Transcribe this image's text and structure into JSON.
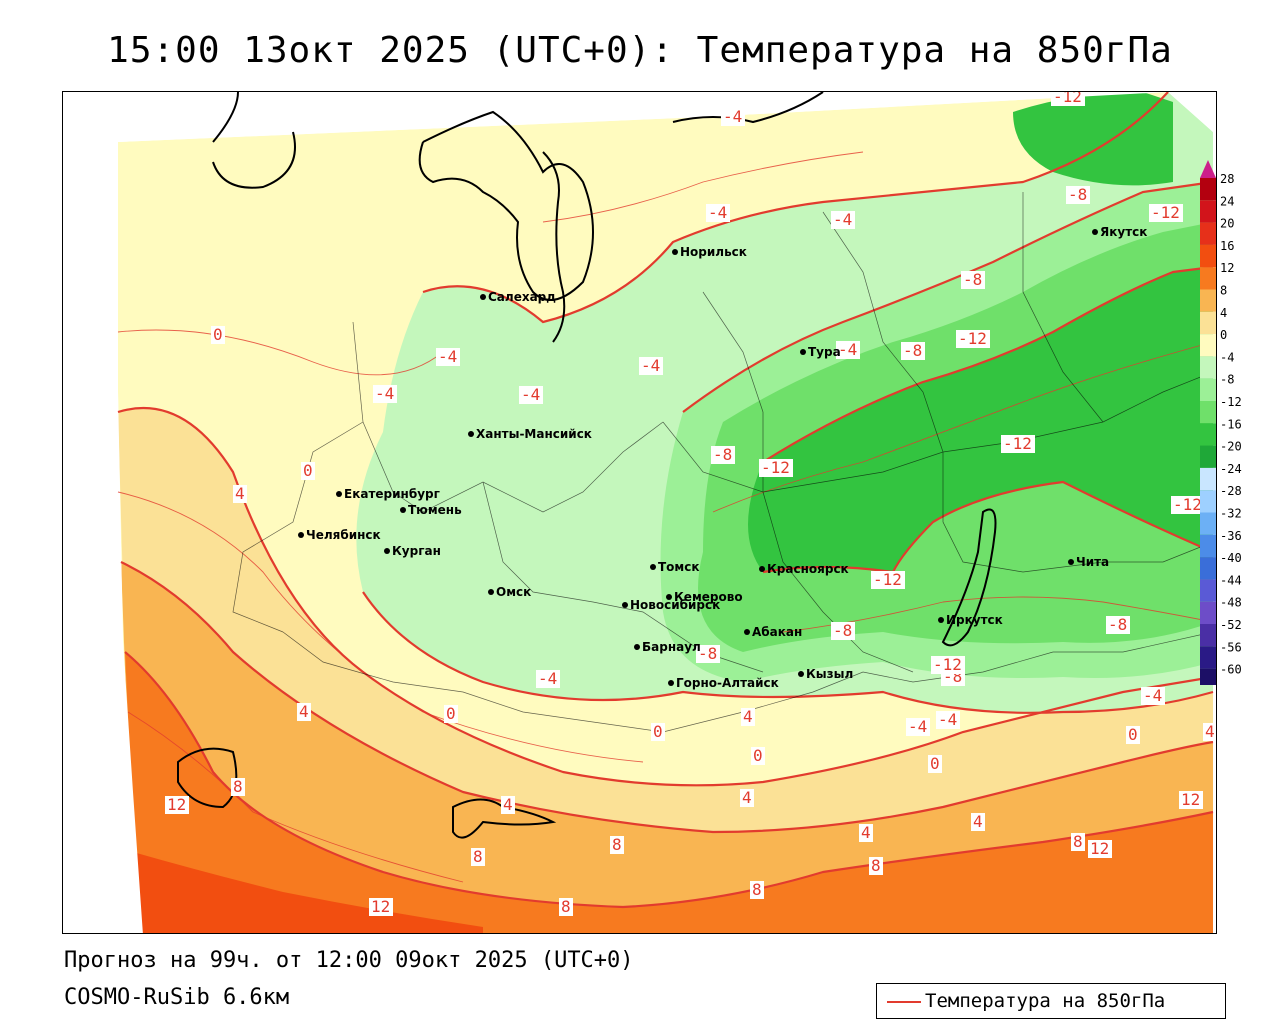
{
  "header": {
    "title": "15:00 13окт 2025 (UTC+0): Температура на 850гПа"
  },
  "footer": {
    "forecast": "Прогноз на 99ч. от 12:00 09окт 2025 (UTC+0)",
    "model": "COSMO-RuSib 6.6км"
  },
  "legend": {
    "label": "Температура на 850гПа",
    "line_color": "#e23b2e"
  },
  "colors": {
    "cold_12": "#33c440",
    "cold_8": "#6fe06a",
    "cold_4": "#9cf097",
    "cold_0": "#c4f7bc",
    "warm_0": "#fffbbf",
    "warm_4": "#fbe196",
    "warm_8": "#f9b552",
    "warm_12": "#f77a1f",
    "warm_16": "#f24e10",
    "contour": "#e23b2e",
    "coast": "#000000"
  },
  "scale": {
    "ticks": [
      "28",
      "24",
      "20",
      "16",
      "12",
      "8",
      "4",
      "0",
      "-4",
      "-8",
      "-12",
      "-16",
      "-20",
      "-24",
      "-28",
      "-32",
      "-36",
      "-40",
      "-44",
      "-48",
      "-52",
      "-56",
      "-60"
    ],
    "colors": [
      "#b3000f",
      "#d2141b",
      "#e6301a",
      "#f24e10",
      "#f77a1f",
      "#f9b552",
      "#fbe196",
      "#fffbbf",
      "#c4f7bc",
      "#9cf097",
      "#6fe06a",
      "#33c440",
      "#1fa838",
      "#c9e6ff",
      "#9ed0ff",
      "#6cb0f5",
      "#4c8ce8",
      "#3a6ed9",
      "#5a5ad6",
      "#6d4dc8",
      "#4a2fa5",
      "#2a1a86",
      "#1c0f66"
    ]
  },
  "cities": [
    {
      "name": "Якутск"
    },
    {
      "name": "Норильск"
    },
    {
      "name": "Салехард"
    },
    {
      "name": "Тура"
    },
    {
      "name": "Ханты-Мансийск"
    },
    {
      "name": "Екатеринбург"
    },
    {
      "name": "Тюмень"
    },
    {
      "name": "Челябинск"
    },
    {
      "name": "Курган"
    },
    {
      "name": "Омск"
    },
    {
      "name": "Томск"
    },
    {
      "name": "Новосибирск"
    },
    {
      "name": "Кемерово"
    },
    {
      "name": "Красноярск"
    },
    {
      "name": "Барнаул"
    },
    {
      "name": "Абакан"
    },
    {
      "name": "Горно-Алтайск"
    },
    {
      "name": "Кызыл"
    },
    {
      "name": "Иркутск"
    },
    {
      "name": "Чита"
    }
  ],
  "contour_labels": [
    {
      "text": "-12"
    },
    {
      "text": "-4"
    },
    {
      "text": "-4"
    },
    {
      "text": "-4"
    },
    {
      "text": "-8"
    },
    {
      "text": "-12"
    },
    {
      "text": "-8"
    },
    {
      "text": "-8"
    },
    {
      "text": "-12"
    },
    {
      "text": "0"
    },
    {
      "text": "-4"
    },
    {
      "text": "-4"
    },
    {
      "text": "-4"
    },
    {
      "text": "-4"
    },
    {
      "text": "-8"
    },
    {
      "text": "-12"
    },
    {
      "text": "-12"
    },
    {
      "text": "0"
    },
    {
      "text": "4"
    },
    {
      "text": "-12"
    },
    {
      "text": "-4"
    },
    {
      "text": "-12"
    },
    {
      "text": "-8"
    },
    {
      "text": "-8"
    },
    {
      "text": "-8"
    },
    {
      "text": "-4"
    },
    {
      "text": "-12"
    },
    {
      "text": "-8"
    },
    {
      "text": "4"
    },
    {
      "text": "0"
    },
    {
      "text": "-4"
    },
    {
      "text": "-4"
    },
    {
      "text": "-4"
    },
    {
      "text": "0"
    },
    {
      "text": "4"
    },
    {
      "text": "0"
    },
    {
      "text": "0"
    },
    {
      "text": "12"
    },
    {
      "text": "8"
    },
    {
      "text": "4"
    },
    {
      "text": "4"
    },
    {
      "text": "4"
    },
    {
      "text": "4"
    },
    {
      "text": "12"
    },
    {
      "text": "8"
    },
    {
      "text": "8"
    },
    {
      "text": "8"
    },
    {
      "text": "12"
    },
    {
      "text": "8"
    },
    {
      "text": "8"
    },
    {
      "text": "12"
    },
    {
      "text": "8"
    },
    {
      "text": "4"
    },
    {
      "text": "0"
    }
  ]
}
